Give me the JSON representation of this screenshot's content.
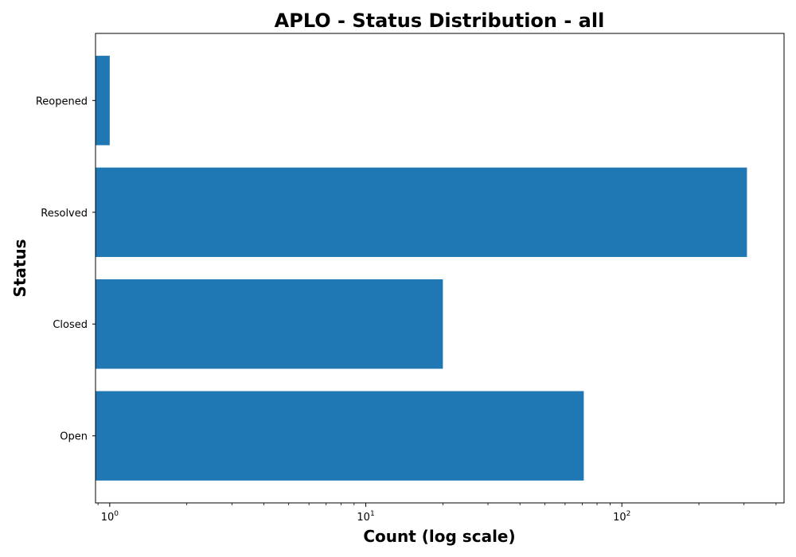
{
  "chart_data": {
    "type": "bar",
    "orientation": "horizontal",
    "title": "APLO - Status Distribution - all",
    "xlabel": "Count (log scale)",
    "ylabel": "Status",
    "x_scale": "log",
    "xlim": [
      0.88,
      430
    ],
    "categories": [
      "Open",
      "Closed",
      "Resolved",
      "Reopened"
    ],
    "values": [
      71,
      20,
      308,
      1
    ],
    "x_ticks": [
      {
        "value": 1,
        "base": "10",
        "exp": "0"
      },
      {
        "value": 10,
        "base": "10",
        "exp": "1"
      },
      {
        "value": 100,
        "base": "10",
        "exp": "2"
      }
    ],
    "bar_color": "#1f77b4",
    "grid": false,
    "legend": "none"
  }
}
